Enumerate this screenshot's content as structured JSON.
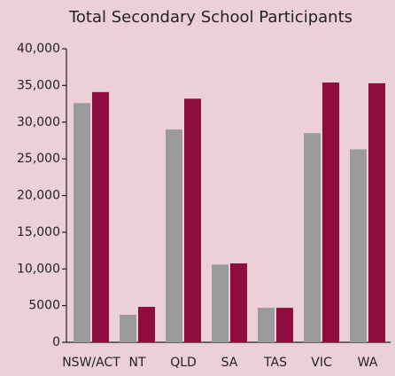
{
  "chart_data": {
    "type": "bar",
    "title": "Total Secondary School Participants",
    "categories": [
      "NSW/ACT",
      "NT",
      "QLD",
      "SA",
      "TAS",
      "VIC",
      "WA"
    ],
    "series": [
      {
        "color": "#9b9b9b",
        "values": [
          32600,
          3750,
          29000,
          10600,
          4700,
          28500,
          26300
        ]
      },
      {
        "color": "#8e0d3e",
        "values": [
          34100,
          4830,
          33200,
          10750,
          4700,
          35400,
          35300
        ]
      }
    ],
    "ylim": [
      0,
      40000
    ],
    "yticks": [
      0,
      5000,
      {
        "value": 10000,
        "label": "10,000"
      },
      {
        "value": 15000,
        "label": "15,000"
      },
      {
        "value": 20000,
        "label": "20,000"
      },
      {
        "value": 25000,
        "label": "25,000"
      },
      {
        "value": 30000,
        "label": "30,000"
      },
      {
        "value": 35000,
        "label": "35,000"
      },
      {
        "value": 40000,
        "label": "40,000"
      }
    ],
    "grid": false
  }
}
